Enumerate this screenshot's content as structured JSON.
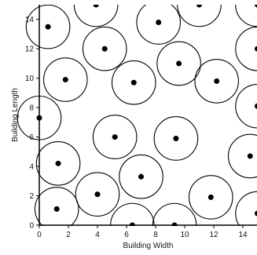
{
  "chart_data": {
    "type": "scatter",
    "title": "",
    "xlabel": "Building Width",
    "ylabel": "Building Length",
    "xlim": [
      0,
      15
    ],
    "ylim": [
      0,
      15
    ],
    "xticks": [
      0,
      2,
      4,
      6,
      8,
      10,
      12,
      14
    ],
    "yticks": [
      0,
      2,
      4,
      6,
      8,
      10,
      12,
      14
    ],
    "radius": 1.5,
    "grid": false,
    "legend": "none",
    "series": [
      {
        "marker": "dot with surrounding circle",
        "points": [
          {
            "x": 0.6,
            "y": 13.5
          },
          {
            "x": 3.9,
            "y": 15.0
          },
          {
            "x": 8.2,
            "y": 13.8
          },
          {
            "x": 11.0,
            "y": 15.0
          },
          {
            "x": 15.0,
            "y": 15.0
          },
          {
            "x": 4.5,
            "y": 12.0
          },
          {
            "x": 15.0,
            "y": 12.0
          },
          {
            "x": 1.8,
            "y": 9.9
          },
          {
            "x": 6.5,
            "y": 9.7
          },
          {
            "x": 9.6,
            "y": 11.0
          },
          {
            "x": 12.2,
            "y": 9.8
          },
          {
            "x": 0.0,
            "y": 7.3
          },
          {
            "x": 15.0,
            "y": 8.1
          },
          {
            "x": 5.2,
            "y": 6.0
          },
          {
            "x": 9.4,
            "y": 5.9
          },
          {
            "x": 1.3,
            "y": 4.2
          },
          {
            "x": 14.5,
            "y": 4.7
          },
          {
            "x": 7.0,
            "y": 3.3
          },
          {
            "x": 4.0,
            "y": 2.1
          },
          {
            "x": 11.8,
            "y": 1.9
          },
          {
            "x": 1.2,
            "y": 1.1
          },
          {
            "x": 6.4,
            "y": 0.0
          },
          {
            "x": 9.3,
            "y": 0.0
          },
          {
            "x": 15.0,
            "y": 0.8
          }
        ]
      }
    ]
  },
  "colors": {
    "axis": "#000000",
    "marker": "#000000",
    "circle_fill": "#ffffff",
    "circle_stroke": "#000000",
    "text": "#111111"
  }
}
